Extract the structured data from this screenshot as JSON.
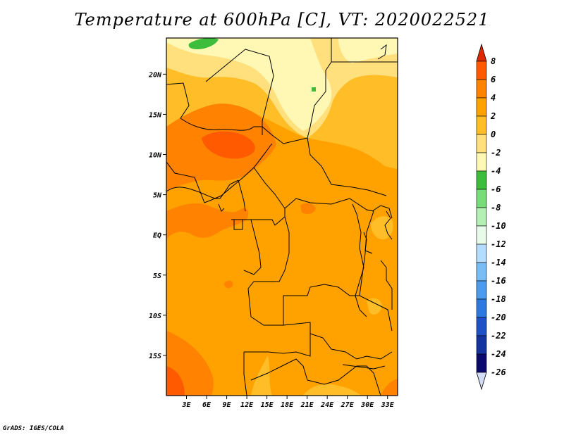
{
  "title": "Temperature at 600hPa [C], VT: 2020022521",
  "credit": "GrADS: IGES/COLA",
  "map": {
    "lon_range": [
      0,
      34.5
    ],
    "lat_range": [
      -20,
      24.5
    ],
    "lon_ticks": [
      {
        "value": 3,
        "label": "3E"
      },
      {
        "value": 6,
        "label": "6E"
      },
      {
        "value": 9,
        "label": "9E"
      },
      {
        "value": 12,
        "label": "12E"
      },
      {
        "value": 15,
        "label": "15E"
      },
      {
        "value": 18,
        "label": "18E"
      },
      {
        "value": 21,
        "label": "21E"
      },
      {
        "value": 24,
        "label": "24E"
      },
      {
        "value": 27,
        "label": "27E"
      },
      {
        "value": 30,
        "label": "30E"
      },
      {
        "value": 33,
        "label": "33E"
      }
    ],
    "lat_ticks": [
      {
        "value": 20,
        "label": "20N"
      },
      {
        "value": 15,
        "label": "15N"
      },
      {
        "value": 10,
        "label": "10N"
      },
      {
        "value": 5,
        "label": "5N"
      },
      {
        "value": 0,
        "label": "EQ"
      },
      {
        "value": -5,
        "label": "5S"
      },
      {
        "value": -10,
        "label": "10S"
      },
      {
        "value": -15,
        "label": "15S"
      }
    ]
  },
  "colorbar": {
    "levels": [
      "8",
      "6",
      "4",
      "2",
      "0",
      "-2",
      "-4",
      "-6",
      "-8",
      "-10",
      "-12",
      "-14",
      "-16",
      "-18",
      "-20",
      "-22",
      "-24",
      "-26"
    ],
    "colors": [
      "#ff3b00",
      "#ff5a00",
      "#ff8200",
      "#ffa200",
      "#ffbe28",
      "#ffe07c",
      "#fff7b4",
      "#3cbe3c",
      "#78dc78",
      "#b4f0b4",
      "#e8fae8",
      "#b4dcff",
      "#78bef5",
      "#4b9bee",
      "#2d78e1",
      "#1e50c8",
      "#1432a0",
      "#0a0a6e",
      "#d2dcf5"
    ],
    "top_color": "#e02800",
    "bottom_color": "#d2dcf5"
  },
  "field_colors": {
    "c8": "#ff3b00",
    "c6": "#ff5a00",
    "c4": "#ff8200",
    "c2": "#ffa200",
    "c0": "#ffbe28",
    "cm2": "#ffe07c",
    "cm4": "#fff7b4",
    "cm6": "#3cbe3c"
  }
}
